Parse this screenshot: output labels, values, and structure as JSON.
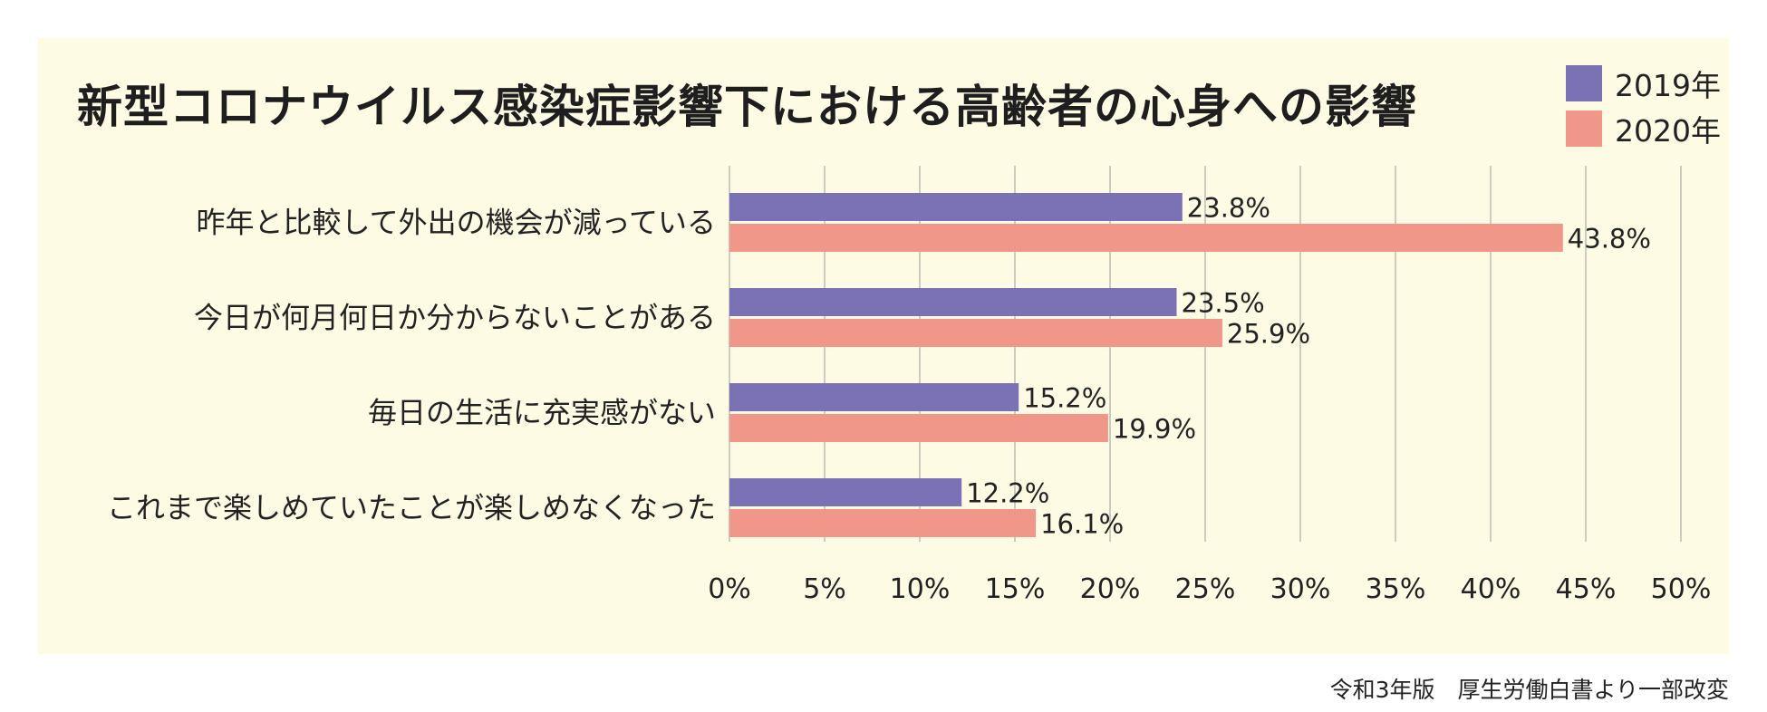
{
  "source_note": "令和3年版　厚生労働白書より一部改変",
  "colors": {
    "background": "#fdfbe3",
    "series_2019": "#7a72b5",
    "series_2020": "#f0978a",
    "grid": "#bdbdb5"
  },
  "chart_data": {
    "type": "bar",
    "orientation": "horizontal",
    "title": "新型コロナウイルス感染症影響下における高齢者の心身への影響",
    "categories": [
      "昨年と比較して外出の機会が減っている",
      "今日が何月何日か分からないことがある",
      "毎日の生活に充実感がない",
      "これまで楽しめていたことが楽しめなくなった"
    ],
    "series": [
      {
        "name": "2019年",
        "color": "#7a72b5",
        "values": [
          23.8,
          23.5,
          15.2,
          12.2
        ],
        "labels": [
          "23.8%",
          "23.5%",
          "15.2%",
          "12.2%"
        ]
      },
      {
        "name": "2020年",
        "color": "#f0978a",
        "values": [
          43.8,
          25.9,
          19.9,
          16.1
        ],
        "labels": [
          "43.8%",
          "25.9%",
          "19.9%",
          "16.1%"
        ]
      }
    ],
    "xlim": [
      0,
      50
    ],
    "ticks": [
      0,
      5,
      10,
      15,
      20,
      25,
      30,
      35,
      40,
      45,
      50
    ],
    "tick_labels": [
      "0%",
      "5%",
      "10%",
      "15%",
      "20%",
      "25%",
      "30%",
      "35%",
      "40%",
      "45%",
      "50%"
    ],
    "grid": true,
    "legend": "top-right"
  }
}
